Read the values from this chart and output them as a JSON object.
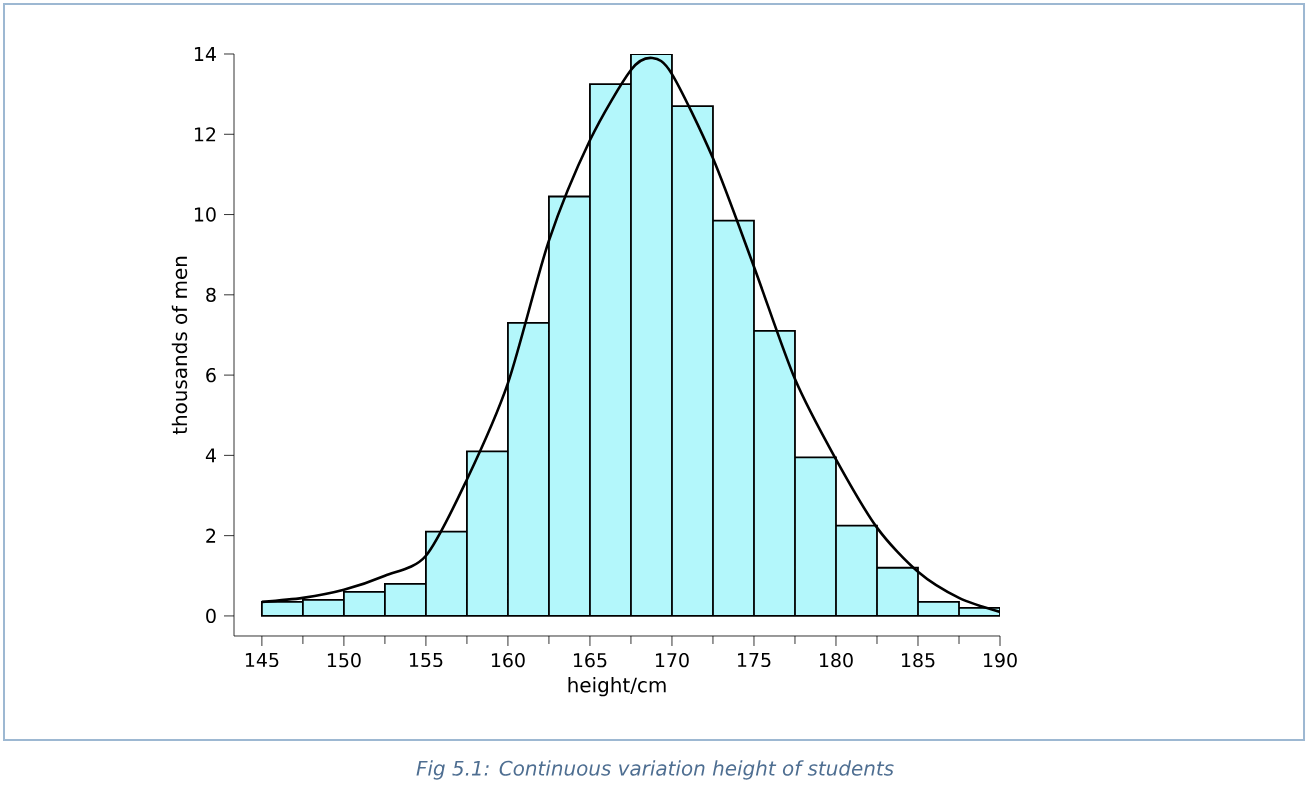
{
  "chart_data": {
    "type": "histogram",
    "xlabel": "height/cm",
    "ylabel": "thousands of men",
    "bins": [
      145,
      147.5,
      150,
      152.5,
      155,
      157.5,
      160,
      162.5,
      165,
      167.5,
      170,
      172.5,
      175,
      177.5,
      180,
      182.5,
      185,
      187.5,
      190
    ],
    "values": [
      0.35,
      0.4,
      0.6,
      0.8,
      2.1,
      4.1,
      7.3,
      10.45,
      13.25,
      14.0,
      12.7,
      9.85,
      7.1,
      3.95,
      2.25,
      1.2,
      0.35,
      0.2
    ],
    "color": "#b3f7fb",
    "series": [
      {
        "type": "line",
        "color": "#000000",
        "x": [
          145,
          147.5,
          150,
          152.5,
          155,
          157.5,
          160,
          162.5,
          165,
          167.5,
          168.8,
          170,
          172.5,
          175,
          177.5,
          180,
          182.5,
          185,
          187.5,
          190
        ],
        "values": [
          0.35,
          0.45,
          0.65,
          1.0,
          1.5,
          3.4,
          5.8,
          9.35,
          11.85,
          13.6,
          13.9,
          13.5,
          11.4,
          8.7,
          5.9,
          3.9,
          2.2,
          1.1,
          0.45,
          0.1
        ]
      }
    ],
    "xlim": [
      143.3,
      190
    ],
    "ylim": [
      -0.5,
      14
    ],
    "xticks": [
      145,
      150,
      155,
      160,
      165,
      170,
      175,
      180,
      185,
      190
    ],
    "yticks": [
      0,
      2,
      4,
      6,
      8,
      10,
      12,
      14
    ],
    "annotations": [
      "*Fig 5.1: Continuous variation height of students*"
    ]
  }
}
